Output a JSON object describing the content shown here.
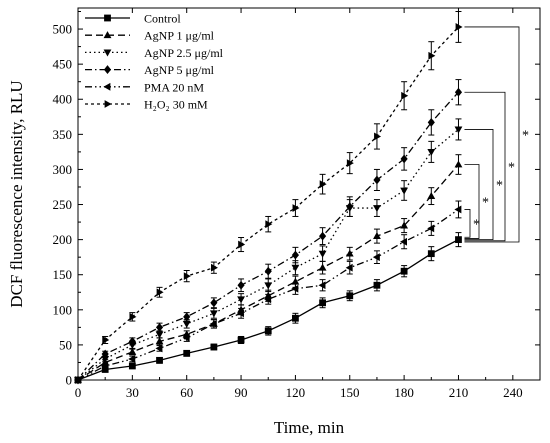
{
  "chart_data": {
    "type": "line",
    "title": "",
    "xlabel": "Time, min",
    "ylabel": "DCF fluorescence intensity, RLU",
    "xlim": [
      0,
      255
    ],
    "ylim": [
      0,
      530
    ],
    "xticks": [
      0,
      30,
      60,
      90,
      120,
      150,
      180,
      210,
      240
    ],
    "yticks": [
      0,
      50,
      100,
      150,
      200,
      250,
      300,
      350,
      400,
      450,
      500
    ],
    "grid": false,
    "legend_position": "top-left",
    "x": [
      0,
      15,
      30,
      45,
      60,
      75,
      90,
      105,
      120,
      135,
      150,
      165,
      180,
      195,
      210
    ],
    "series": [
      {
        "name": "Control",
        "marker": "square",
        "dash": "solid",
        "values": [
          0,
          15,
          20,
          28,
          38,
          47,
          57,
          70,
          88,
          110,
          120,
          135,
          155,
          180,
          200
        ],
        "errors": [
          2,
          3,
          3,
          4,
          4,
          4,
          5,
          6,
          7,
          7,
          7,
          8,
          8,
          10,
          10
        ]
      },
      {
        "name": "AgNP 1 μg/ml",
        "marker": "triangle-up",
        "dash": "dashed",
        "values": [
          0,
          25,
          40,
          55,
          65,
          80,
          100,
          120,
          140,
          160,
          180,
          205,
          220,
          262,
          307
        ],
        "errors": [
          2,
          4,
          4,
          5,
          5,
          6,
          7,
          8,
          8,
          9,
          9,
          10,
          10,
          12,
          14
        ]
      },
      {
        "name": "AgNP 2.5 μg/ml",
        "marker": "triangle-down",
        "dash": "dotted",
        "values": [
          0,
          30,
          50,
          65,
          80,
          95,
          115,
          135,
          160,
          180,
          245,
          245,
          270,
          325,
          357
        ],
        "errors": [
          2,
          4,
          5,
          5,
          6,
          7,
          8,
          9,
          10,
          11,
          12,
          12,
          14,
          15,
          15
        ]
      },
      {
        "name": "AgNP 5 μg/ml",
        "marker": "diamond",
        "dash": "dashdot",
        "values": [
          0,
          37,
          55,
          75,
          90,
          110,
          135,
          155,
          178,
          205,
          247,
          285,
          315,
          367,
          410
        ],
        "errors": [
          2,
          4,
          5,
          6,
          6,
          7,
          9,
          10,
          11,
          12,
          14,
          15,
          16,
          18,
          18
        ]
      },
      {
        "name": "PMA 20 nM",
        "marker": "triangle-left",
        "dash": "dashdotdot",
        "values": [
          0,
          20,
          30,
          45,
          60,
          80,
          95,
          115,
          130,
          135,
          160,
          175,
          197,
          216,
          243
        ],
        "errors": [
          2,
          3,
          4,
          4,
          5,
          6,
          7,
          7,
          8,
          8,
          9,
          9,
          10,
          10,
          12
        ]
      },
      {
        "name": "H₂O₂ 30 mM",
        "marker": "triangle-right",
        "dash": "short-dashed",
        "values": [
          0,
          57,
          90,
          125,
          148,
          160,
          193,
          222,
          245,
          279,
          309,
          347,
          405,
          462,
          503
        ],
        "errors": [
          3,
          5,
          6,
          7,
          8,
          8,
          10,
          11,
          12,
          14,
          15,
          18,
          20,
          20,
          22
        ]
      }
    ],
    "significance_brackets": [
      {
        "from": "Control",
        "to": "PMA 20 nM",
        "label": "*"
      },
      {
        "from": "Control",
        "to": "AgNP 1 μg/ml",
        "label": "*"
      },
      {
        "from": "Control",
        "to": "AgNP 2.5 μg/ml",
        "label": "*"
      },
      {
        "from": "Control",
        "to": "AgNP 5 μg/ml",
        "label": "*"
      },
      {
        "from": "Control",
        "to": "H₂O₂ 30 mM",
        "label": "*"
      }
    ]
  }
}
